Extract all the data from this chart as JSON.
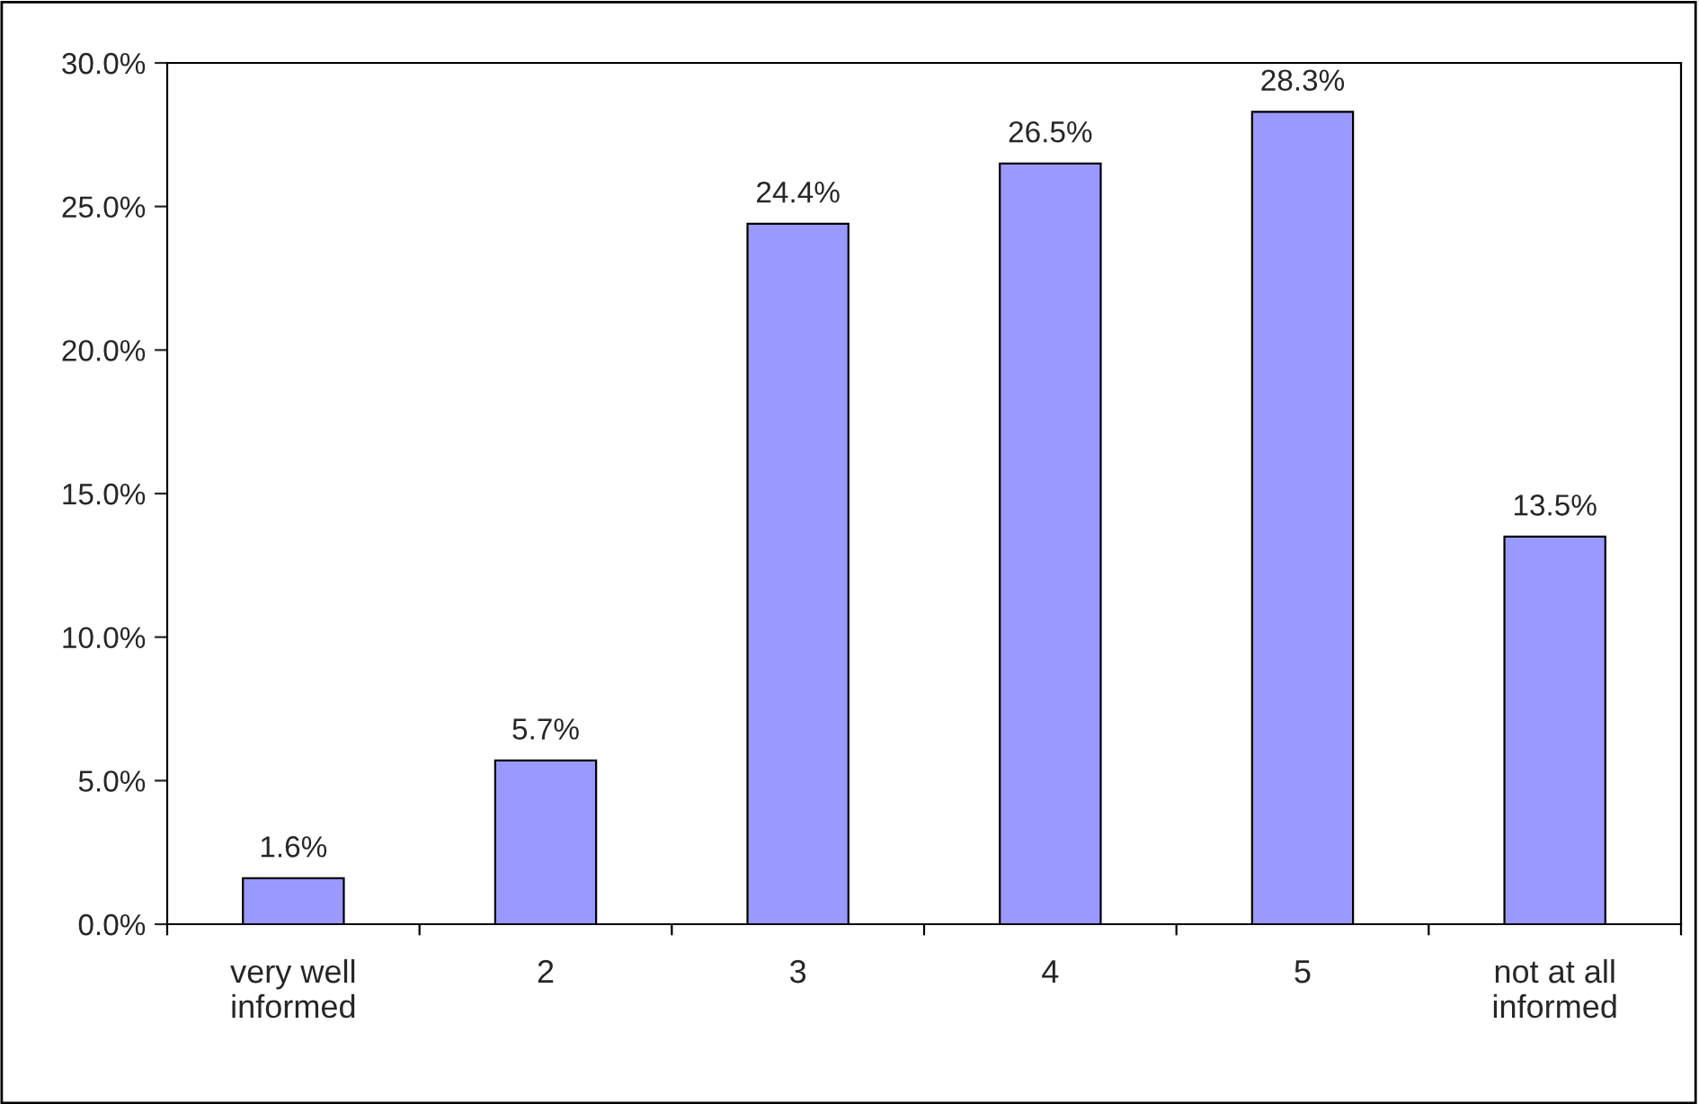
{
  "chart_data": {
    "type": "bar",
    "categories": [
      "very well\ninformed",
      "2",
      "3",
      "4",
      "5",
      "not at all\ninformed"
    ],
    "values": [
      1.6,
      5.7,
      24.4,
      26.5,
      28.3,
      13.5
    ],
    "value_labels": [
      "1.6%",
      "5.7%",
      "24.4%",
      "26.5%",
      "28.3%",
      "13.5%"
    ],
    "color": "#9999ff",
    "ylim": [
      0,
      30
    ],
    "yticks": [
      {
        "value": 0,
        "label": "0.0%"
      },
      {
        "value": 5,
        "label": "5.0%"
      },
      {
        "value": 10,
        "label": "10.0%"
      },
      {
        "value": 15,
        "label": "15.0%"
      },
      {
        "value": 20,
        "label": "20.0%"
      },
      {
        "value": 25,
        "label": "25.0%"
      },
      {
        "value": 30,
        "label": "30.0%"
      }
    ],
    "grid": false,
    "legend": false
  }
}
